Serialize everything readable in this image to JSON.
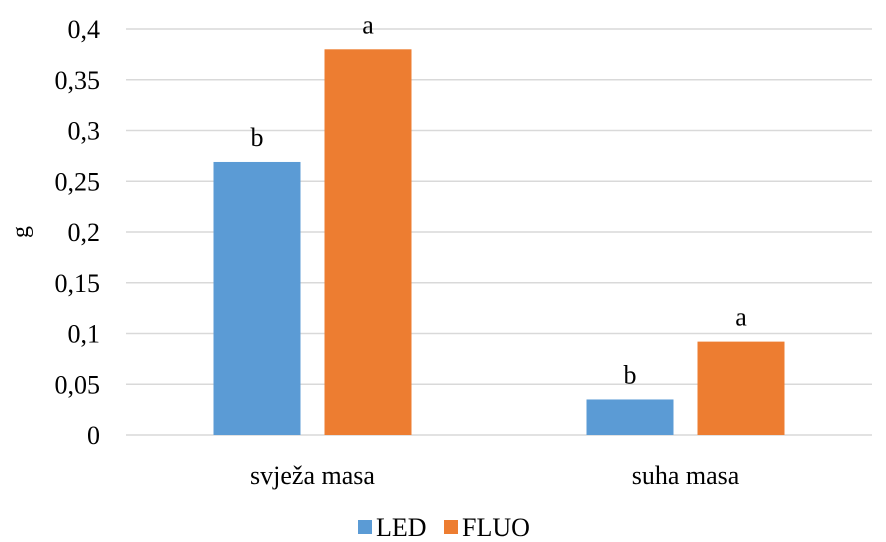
{
  "chart_data": {
    "type": "bar",
    "categories": [
      "svježa masa",
      "suha masa"
    ],
    "series": [
      {
        "name": "LED",
        "values": [
          0.269,
          0.035
        ],
        "letters": [
          "b",
          "b"
        ],
        "color": "#5b9bd5"
      },
      {
        "name": "FLUO",
        "values": [
          0.38,
          0.092
        ],
        "letters": [
          "a",
          "a"
        ],
        "color": "#ed7d31"
      }
    ],
    "title": "",
    "xlabel": "",
    "ylabel": "g",
    "ylim": [
      0,
      0.4
    ],
    "yticks": [
      0,
      0.05,
      0.1,
      0.15,
      0.2,
      0.25,
      0.3,
      0.35,
      0.4
    ],
    "ytick_labels": [
      "0",
      "0,05",
      "0,1",
      "0,15",
      "0,2",
      "0,25",
      "0,3",
      "0,35",
      "0,4"
    ],
    "grid": true,
    "legend_position": "bottom-center"
  }
}
